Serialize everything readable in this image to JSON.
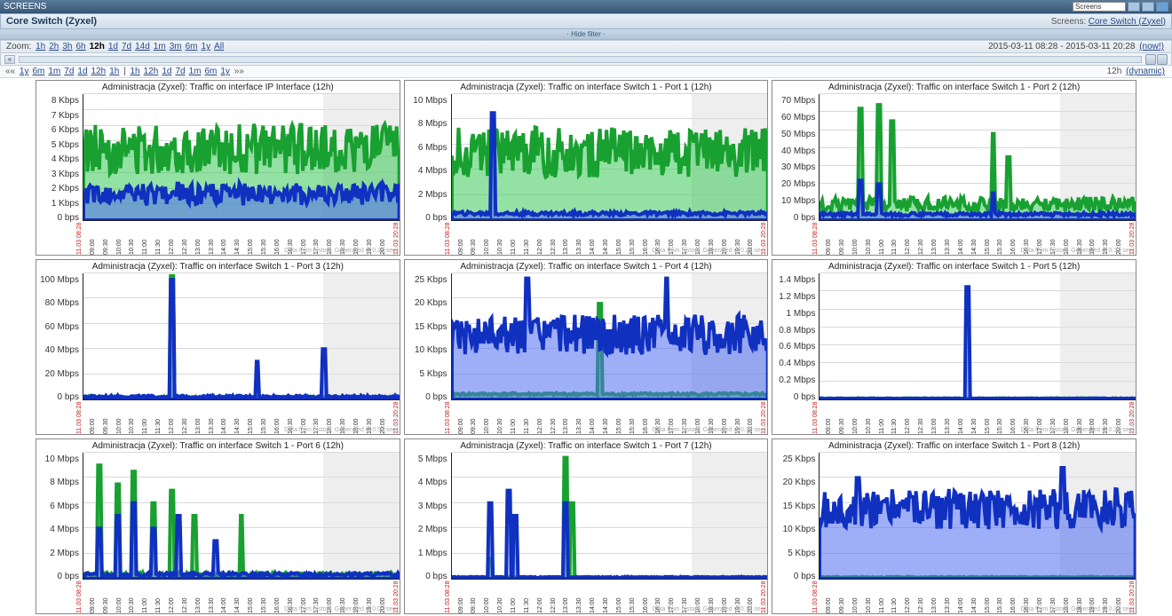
{
  "topbar": {
    "title": "SCREENS",
    "search": "Screens"
  },
  "titlebar": {
    "title": "Core Switch (Zyxel)",
    "breadcrumb_label": "Screens:",
    "breadcrumb_link": "Core Switch (Zyxel)"
  },
  "hidefilter": "· Hide filter ·",
  "zoom": {
    "label": "Zoom:",
    "items": [
      "1h",
      "2h",
      "3h",
      "6h",
      "12h",
      "1d",
      "7d",
      "14d",
      "1m",
      "3m",
      "6m",
      "1y",
      "All"
    ],
    "selected": "12h",
    "range": "2015-03-11 08:28  -  2015-03-11 20:28",
    "now": "(now!)"
  },
  "linkrow": {
    "left_prefix": "««",
    "left": [
      "1y",
      "6m",
      "1m",
      "7d",
      "1d",
      "12h",
      "1h"
    ],
    "sep": "|",
    "right": [
      "1h",
      "12h",
      "1d",
      "7d",
      "1m",
      "6m",
      "1y"
    ],
    "right_suffix": "»»",
    "tail_label": "12h",
    "tail_link": "(dynamic)"
  },
  "xaxis": {
    "start": "11.03 08:28",
    "end": "11.03 20:28",
    "ticks": [
      "09:00",
      "09:30",
      "10:00",
      "10:30",
      "11:00",
      "11:30",
      "12:00",
      "12:30",
      "13:00",
      "13:30",
      "14:00",
      "14:30",
      "15:00",
      "15:30",
      "16:00",
      "16:30",
      "17:00",
      "17:30",
      "18:00",
      "18:30",
      "19:00",
      "19:30",
      "20:00"
    ]
  },
  "colors": {
    "green_line": "#18a030",
    "green_fill": "rgba(60,200,90,0.55)",
    "blue_line": "#1030c0",
    "blue_fill": "rgba(80,110,240,0.55)",
    "grid": "#d8d8d8",
    "shade": "#e0e0e0",
    "axis": "#222222",
    "tick_edge": "#c02020",
    "bg": "#ffffff"
  },
  "shade_range": [
    0.76,
    1.0
  ],
  "charts": [
    {
      "title": "Administracja (Zyxel): Traffic on interface IP Interface (12h)",
      "ymax": 8,
      "yunit": "Kbps",
      "yticks": [
        0,
        1,
        2,
        3,
        4,
        5,
        6,
        7,
        8
      ],
      "gen": "0.29",
      "pattern": "dense",
      "g_base": 4.2,
      "g_amp": 1.6,
      "b_base": 1.5,
      "b_amp": 0.7,
      "spikes_g": [],
      "spikes_b": []
    },
    {
      "title": "Administracja (Zyxel): Traffic on interface Switch  1 - Port  1 (12h)",
      "ymax": 10,
      "yunit": "Mbps",
      "yticks": [
        0,
        2,
        4,
        6,
        8,
        10
      ],
      "gen": "0.25",
      "pattern": "decay",
      "g_base": 5,
      "g_amp": 2,
      "b_base": 0.5,
      "b_amp": 0.3,
      "spikes_g": [],
      "spikes_b": [
        [
          0.13,
          8.5
        ]
      ]
    },
    {
      "title": "Administracja (Zyxel): Traffic on interface Switch  1 - Port  2 (12h)",
      "ymax": 70,
      "yunit": "Mbps",
      "yticks": [
        0,
        10,
        20,
        30,
        40,
        50,
        60,
        70
      ],
      "gen": "0.31",
      "pattern": "bursts",
      "g_base": 8,
      "g_amp": 4,
      "b_base": 3,
      "b_amp": 2,
      "spikes_g": [
        [
          0.13,
          62
        ],
        [
          0.19,
          64
        ],
        [
          0.23,
          55
        ],
        [
          0.55,
          48
        ],
        [
          0.6,
          35
        ]
      ],
      "spikes_b": [
        [
          0.13,
          22
        ],
        [
          0.19,
          20
        ],
        [
          0.55,
          15
        ]
      ]
    },
    {
      "title": "Administracja (Zyxel): Traffic on interface Switch  1 - Port  3 (12h)",
      "ymax": 100,
      "yunit": "Mbps",
      "yticks": [
        0,
        20,
        40,
        60,
        80,
        100
      ],
      "gen": "0.57",
      "pattern": "sparse",
      "g_base": 1.5,
      "g_amp": 1.5,
      "b_base": 2,
      "b_amp": 2,
      "spikes_g": [
        [
          0.28,
          98
        ]
      ],
      "spikes_b": [
        [
          0.28,
          95
        ],
        [
          0.55,
          30
        ],
        [
          0.76,
          40
        ]
      ]
    },
    {
      "title": "Administracja (Zyxel): Traffic on interface Switch  1 - Port  4 (12h)",
      "ymax": 25,
      "yunit": "Kbps",
      "yticks": [
        0,
        5,
        10,
        15,
        20,
        25
      ],
      "gen": "0.30",
      "pattern": "noisy_blue",
      "g_base": 1,
      "g_amp": 0.5,
      "b_base": 12,
      "b_amp": 4,
      "spikes_g": [
        [
          0.47,
          19
        ]
      ],
      "spikes_b": [
        [
          0.24,
          24
        ],
        [
          0.68,
          24
        ]
      ]
    },
    {
      "title": "Administracja (Zyxel): Traffic on interface Switch  1 - Port  5 (12h)",
      "ymax": 1.4,
      "yunit": "Mbps",
      "yticks": [
        0,
        0.2,
        0.4,
        0.6,
        0.8,
        1,
        1.2,
        1.4
      ],
      "gen": "0.24",
      "pattern": "flat",
      "g_base": 0.01,
      "g_amp": 0.01,
      "b_base": 0.01,
      "b_amp": 0.005,
      "spikes_g": [],
      "spikes_b": [
        [
          0.47,
          1.25
        ]
      ]
    },
    {
      "title": "Administracja (Zyxel): Traffic on interface Switch  1 - Port  6 (12h)",
      "ymax": 10,
      "yunit": "Mbps",
      "yticks": [
        0,
        2,
        4,
        6,
        8,
        10
      ],
      "gen": "0.07",
      "pattern": "sparse_both",
      "g_base": 0.3,
      "g_amp": 0.3,
      "b_base": 0.3,
      "b_amp": 0.3,
      "spikes_g": [
        [
          0.05,
          9
        ],
        [
          0.11,
          7.5
        ],
        [
          0.16,
          8.5
        ],
        [
          0.22,
          6
        ],
        [
          0.28,
          7
        ],
        [
          0.35,
          5
        ],
        [
          0.5,
          5
        ]
      ],
      "spikes_b": [
        [
          0.05,
          4
        ],
        [
          0.11,
          5
        ],
        [
          0.16,
          6
        ],
        [
          0.22,
          4
        ],
        [
          0.3,
          5
        ],
        [
          0.42,
          3
        ]
      ]
    },
    {
      "title": "Administracja (Zyxel): Traffic on interface Switch  1 - Port  7 (12h)",
      "ymax": 5,
      "yunit": "Mbps",
      "yticks": [
        0,
        1,
        2,
        3,
        4,
        5
      ],
      "gen": "0.14",
      "pattern": "clusters",
      "g_base": 0.05,
      "g_amp": 0.05,
      "b_base": 0.05,
      "b_amp": 0.05,
      "spikes_g": [
        [
          0.36,
          4.8
        ],
        [
          0.38,
          3
        ],
        [
          0.12,
          0.8
        ]
      ],
      "spikes_b": [
        [
          0.12,
          3
        ],
        [
          0.18,
          3.5
        ],
        [
          0.2,
          2.5
        ],
        [
          0.36,
          3
        ]
      ]
    },
    {
      "title": "Administracja (Zyxel): Traffic on interface Switch  1 - Port  8 (12h)",
      "ymax": 25,
      "yunit": "Kbps",
      "yticks": [
        0,
        5,
        10,
        15,
        20,
        25
      ],
      "gen": "0.31",
      "pattern": "noisy_blue",
      "g_base": 0.3,
      "g_amp": 0.2,
      "b_base": 13,
      "b_amp": 4,
      "spikes_g": [],
      "spikes_b": [
        [
          0.77,
          22
        ],
        [
          0.12,
          20
        ]
      ]
    }
  ]
}
